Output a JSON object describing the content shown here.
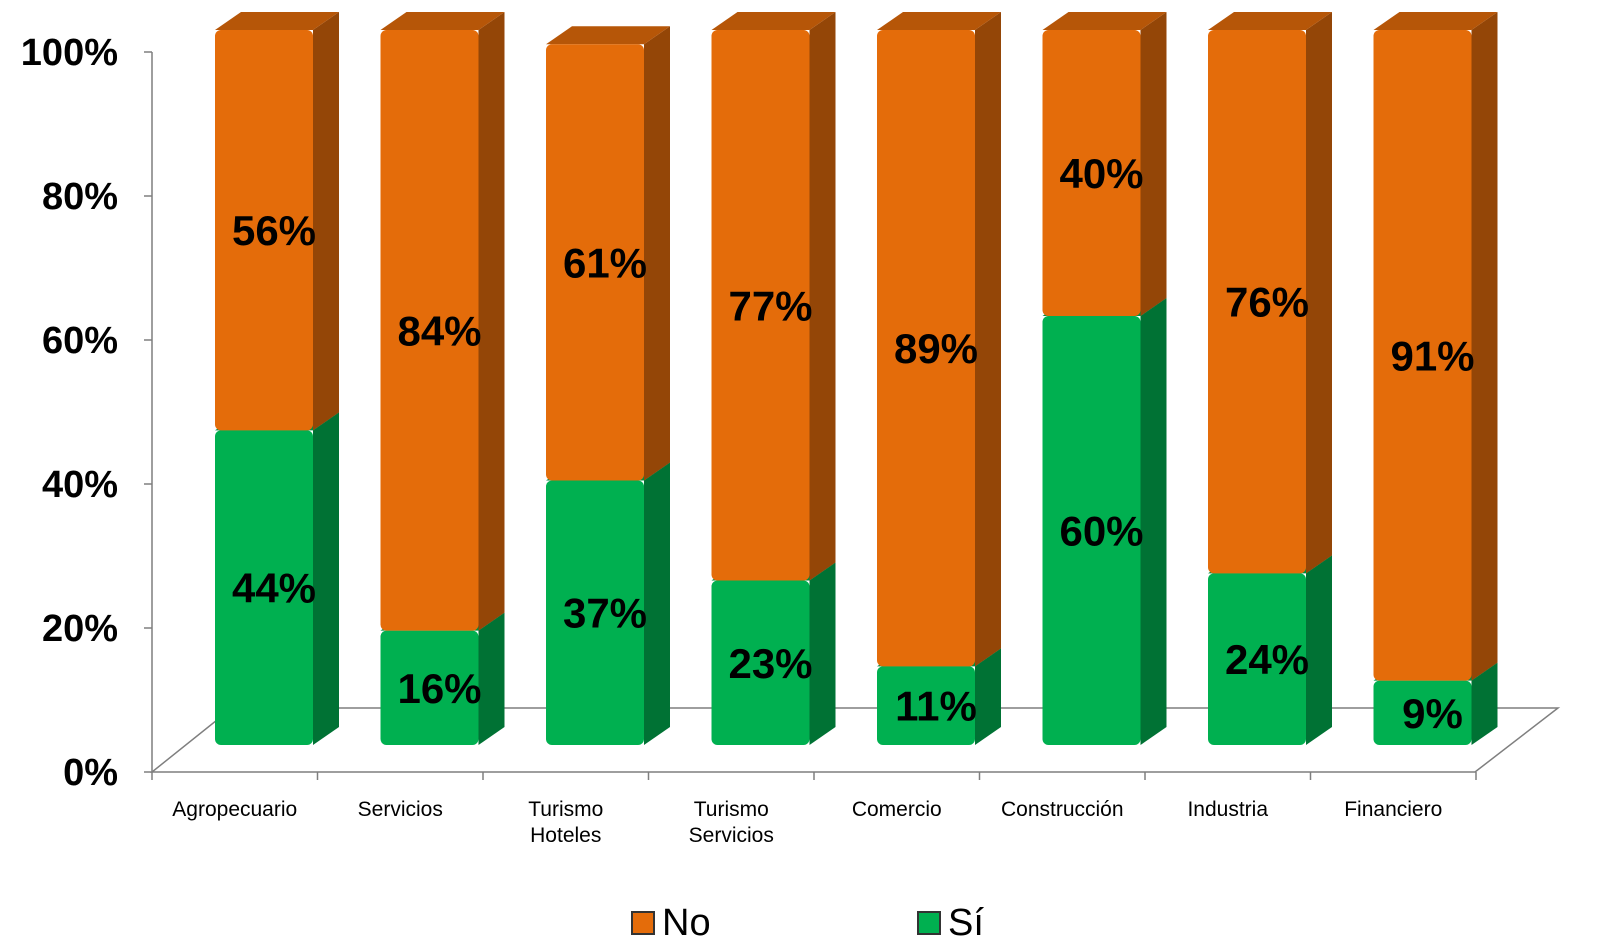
{
  "chart_data": {
    "type": "bar",
    "stacked": true,
    "percent": true,
    "three_d": true,
    "categories": [
      "Agropecuario",
      "Servicios",
      "Turismo Hoteles",
      "Turismo Servicios",
      "Comercio",
      "Construcción",
      "Industria",
      "Financiero"
    ],
    "category_lines": [
      [
        "Agropecuario"
      ],
      [
        "Servicios"
      ],
      [
        "Turismo",
        "Hoteles"
      ],
      [
        "Turismo",
        "Servicios"
      ],
      [
        "Comercio"
      ],
      [
        "Construcción"
      ],
      [
        "Industria"
      ],
      [
        "Financiero"
      ]
    ],
    "series": [
      {
        "name": "Sí",
        "color": "#00b050",
        "values": [
          44,
          16,
          37,
          23,
          11,
          60,
          24,
          9
        ],
        "labels": [
          "44%",
          "16%",
          "37%",
          "23%",
          "11%",
          "60%",
          "24%",
          "9%"
        ]
      },
      {
        "name": "No",
        "color": "#e46c0a",
        "values": [
          56,
          84,
          61,
          77,
          89,
          40,
          76,
          91
        ],
        "labels": [
          "56%",
          "84%",
          "61%",
          "77%",
          "89%",
          "40%",
          "76%",
          "91%"
        ]
      }
    ],
    "ylim": [
      0,
      100
    ],
    "yticks": [
      "0%",
      "20%",
      "40%",
      "60%",
      "80%",
      "100%"
    ],
    "grid": false,
    "legend_position": "bottom",
    "legend_order": [
      "No",
      "Sí"
    ]
  }
}
